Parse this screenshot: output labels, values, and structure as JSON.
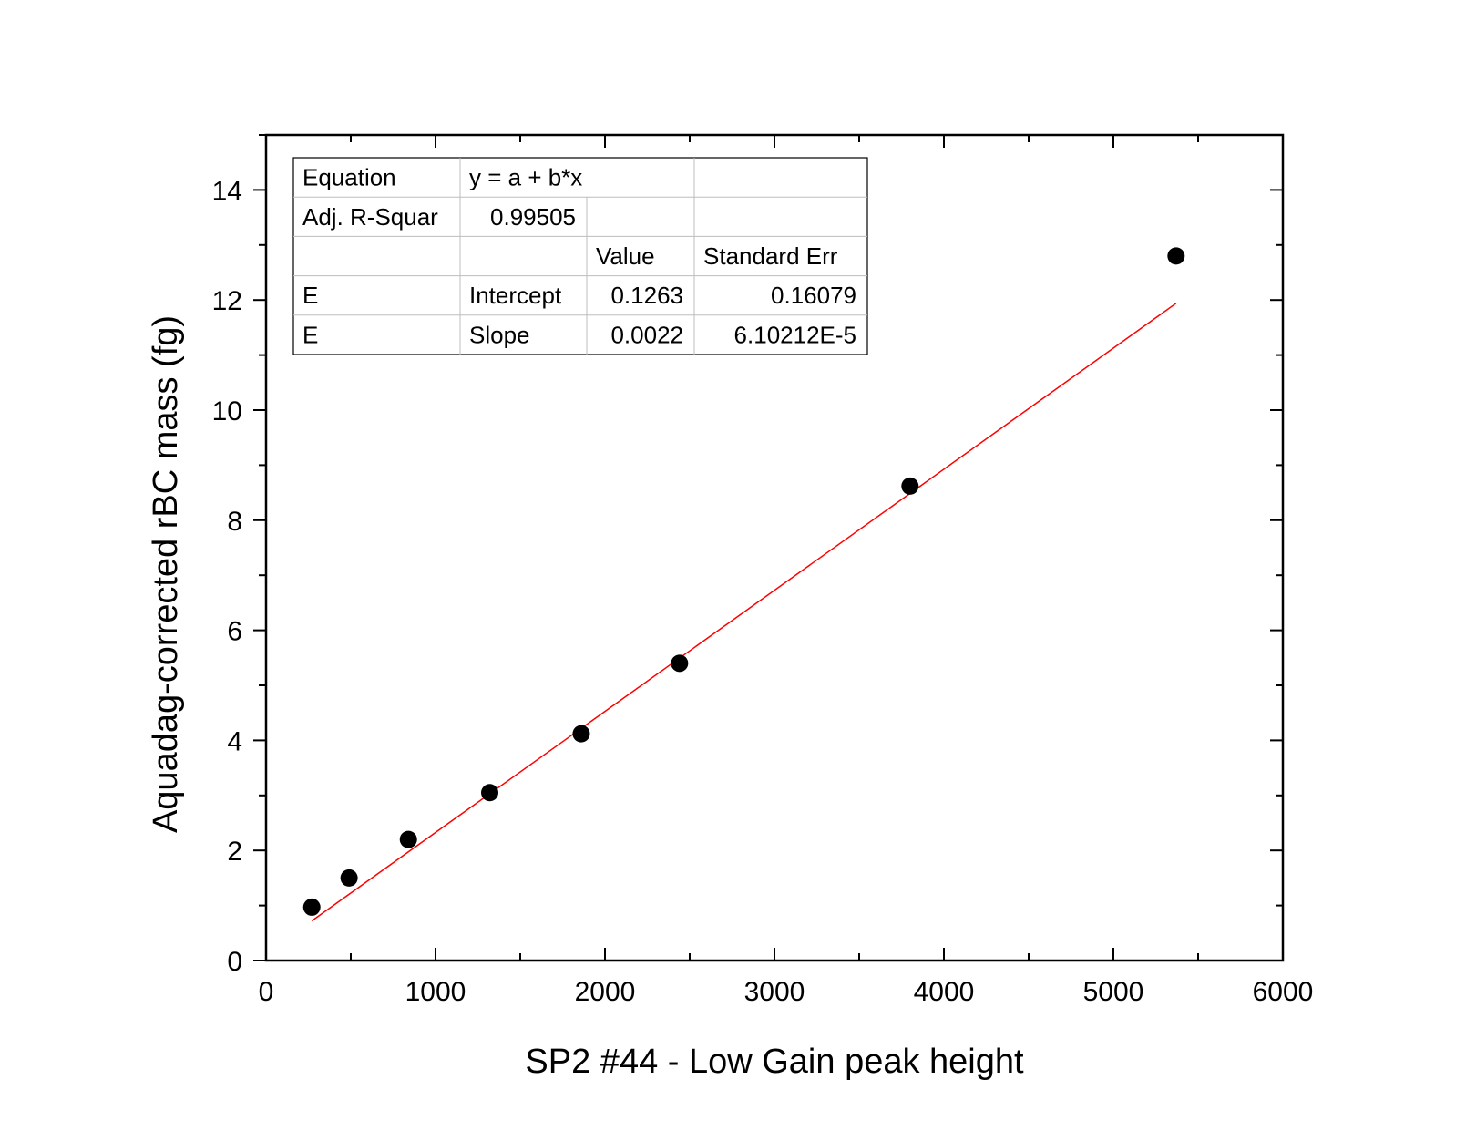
{
  "chart_data": {
    "type": "scatter",
    "title": "",
    "xlabel": "SP2 #44 - Low Gain peak height",
    "ylabel": "Aquadag-corrected rBC mass (fg)",
    "xlim": [
      0,
      6000
    ],
    "ylim": [
      0,
      15
    ],
    "x_ticks": [
      0,
      1000,
      2000,
      3000,
      4000,
      5000,
      6000
    ],
    "y_ticks": [
      0,
      2,
      4,
      6,
      8,
      10,
      12,
      14
    ],
    "x_tick_labels": [
      "0",
      "1000",
      "2000",
      "3000",
      "4000",
      "5000",
      "6000"
    ],
    "y_tick_labels": [
      "0",
      "2",
      "4",
      "6",
      "8",
      "10",
      "12",
      "14"
    ],
    "grid": false,
    "series": [
      {
        "type": "scatter",
        "color": "#000000",
        "x": [
          270,
          490,
          840,
          1320,
          1860,
          2440,
          3800,
          5370
        ],
        "y": [
          0.97,
          1.5,
          2.2,
          3.05,
          4.12,
          5.4,
          8.62,
          12.8
        ]
      },
      {
        "type": "line",
        "color": "#ff0000",
        "x": [
          270,
          5370
        ],
        "y": [
          0.7203,
          11.9403
        ]
      }
    ],
    "fit_table": {
      "rows": [
        [
          "Equation",
          "y = a + b*x",
          "",
          ""
        ],
        [
          "Adj. R-Squar",
          "0.99505",
          "",
          ""
        ],
        [
          "",
          "",
          "Value",
          "Standard Err"
        ],
        [
          "E",
          "Intercept",
          "0.1263",
          "0.16079"
        ],
        [
          "E",
          "Slope",
          "0.0022",
          "6.10212E-5"
        ]
      ]
    }
  }
}
